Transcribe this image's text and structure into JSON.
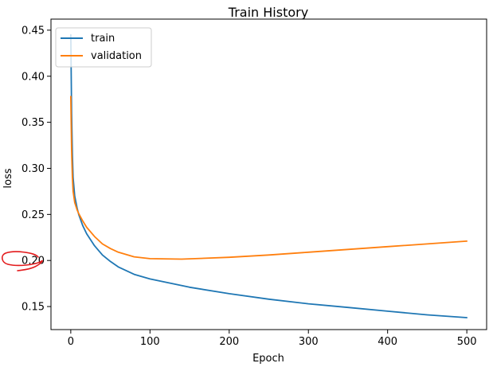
{
  "chart_data": {
    "type": "line",
    "title": "Train History",
    "xlabel": "Epoch",
    "ylabel": "loss",
    "xlim": [
      -25,
      525
    ],
    "ylim": [
      0.125,
      0.462
    ],
    "xticks": [
      0,
      100,
      200,
      300,
      400,
      500
    ],
    "yticks": [
      0.15,
      0.2,
      0.25,
      0.3,
      0.35,
      0.4,
      0.45
    ],
    "xtick_labels": [
      "0",
      "100",
      "200",
      "300",
      "400",
      "500"
    ],
    "ytick_labels": [
      "0.15",
      "0.20",
      "0.25",
      "0.30",
      "0.35",
      "0.40",
      "0.45"
    ],
    "grid": false,
    "legend_position": "top-left",
    "series": [
      {
        "name": "train",
        "color": "#1f77b4",
        "x": [
          0,
          1,
          2,
          3,
          5,
          8,
          10,
          15,
          20,
          30,
          40,
          50,
          60,
          80,
          100,
          150,
          200,
          250,
          300,
          350,
          400,
          450,
          500
        ],
        "y": [
          0.445,
          0.36,
          0.315,
          0.29,
          0.27,
          0.257,
          0.25,
          0.238,
          0.229,
          0.216,
          0.206,
          0.199,
          0.193,
          0.185,
          0.18,
          0.171,
          0.164,
          0.158,
          0.153,
          0.149,
          0.145,
          0.141,
          0.138
        ]
      },
      {
        "name": "validation",
        "color": "#ff7f0e",
        "x": [
          0,
          1,
          2,
          3,
          5,
          8,
          10,
          15,
          20,
          30,
          40,
          50,
          60,
          80,
          100,
          140,
          200,
          250,
          300,
          350,
          400,
          450,
          500
        ],
        "y": [
          0.378,
          0.32,
          0.29,
          0.275,
          0.263,
          0.255,
          0.251,
          0.243,
          0.236,
          0.226,
          0.218,
          0.213,
          0.209,
          0.204,
          0.202,
          0.2015,
          0.2035,
          0.206,
          0.209,
          0.212,
          0.215,
          0.218,
          0.221
        ]
      }
    ]
  },
  "annotation": {
    "color": "#e31a1c",
    "description_icon": "hand-drawn-red-circle"
  }
}
